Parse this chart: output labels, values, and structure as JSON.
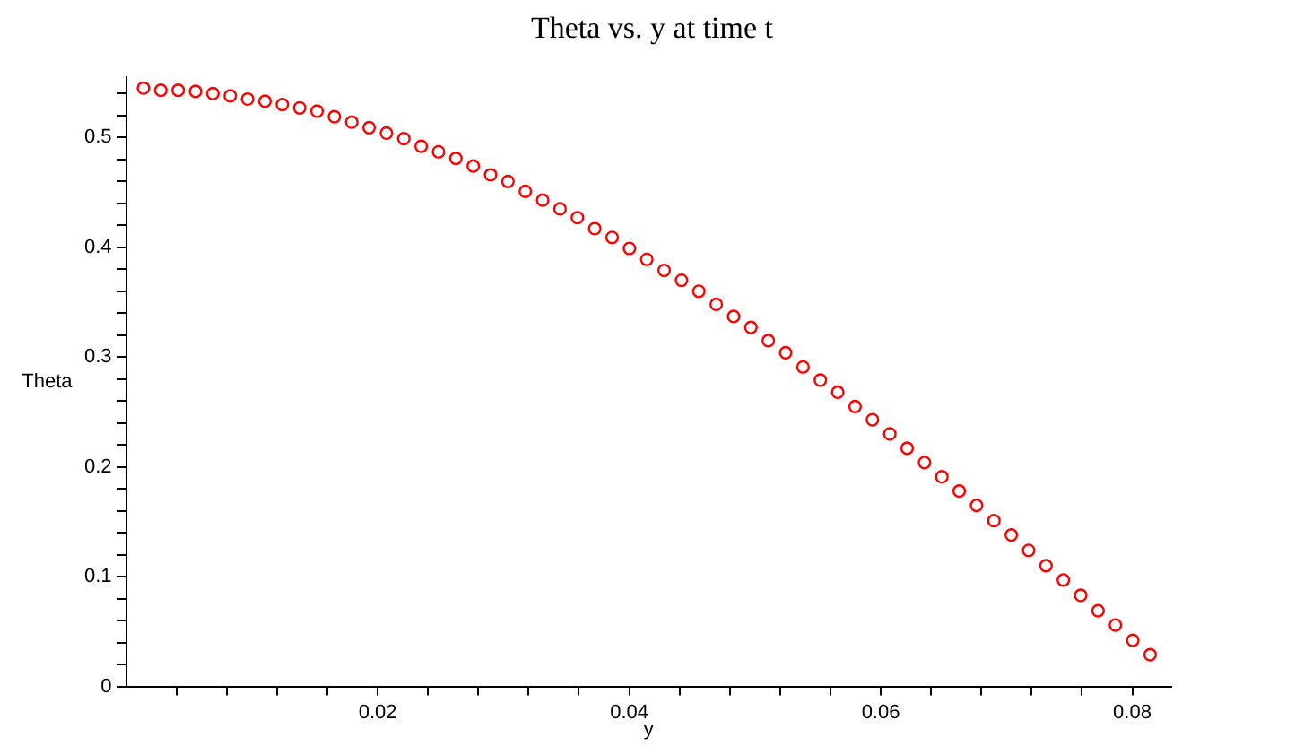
{
  "chart_data": {
    "type": "scatter",
    "title": "Theta vs. y at time t",
    "xlabel": "y",
    "ylabel": "Theta",
    "marker": "circle",
    "grid": false,
    "legend": false,
    "xlim": [
      0,
      0.0831
    ],
    "ylim": [
      0,
      0.555
    ],
    "xticks": [
      {
        "value": 0.004,
        "label": null
      },
      {
        "value": 0.008,
        "label": null
      },
      {
        "value": 0.012,
        "label": null
      },
      {
        "value": 0.016,
        "label": null
      },
      0.02,
      {
        "value": 0.024,
        "label": null
      },
      {
        "value": 0.028,
        "label": null
      },
      {
        "value": 0.032,
        "label": null
      },
      {
        "value": 0.036,
        "label": null
      },
      0.04,
      {
        "value": 0.044,
        "label": null
      },
      {
        "value": 0.048,
        "label": null
      },
      {
        "value": 0.052,
        "label": null
      },
      {
        "value": 0.056,
        "label": null
      },
      0.06,
      {
        "value": 0.064,
        "label": null
      },
      {
        "value": 0.068,
        "label": null
      },
      {
        "value": 0.072,
        "label": null
      },
      {
        "value": 0.076,
        "label": null
      },
      0.08
    ],
    "yticks": [
      0,
      {
        "value": 0.02,
        "label": null
      },
      {
        "value": 0.04,
        "label": null
      },
      {
        "value": 0.06,
        "label": null
      },
      {
        "value": 0.08,
        "label": null
      },
      0.1,
      {
        "value": 0.12,
        "label": null
      },
      {
        "value": 0.14,
        "label": null
      },
      {
        "value": 0.16,
        "label": null
      },
      {
        "value": 0.18,
        "label": null
      },
      0.2,
      {
        "value": 0.22,
        "label": null
      },
      {
        "value": 0.24,
        "label": null
      },
      {
        "value": 0.26,
        "label": null
      },
      {
        "value": 0.28,
        "label": null
      },
      0.3,
      {
        "value": 0.32,
        "label": null
      },
      {
        "value": 0.34,
        "label": null
      },
      {
        "value": 0.36,
        "label": null
      },
      {
        "value": 0.38,
        "label": null
      },
      0.4,
      {
        "value": 0.42,
        "label": null
      },
      {
        "value": 0.44,
        "label": null
      },
      {
        "value": 0.46,
        "label": null
      },
      {
        "value": 0.48,
        "label": null
      },
      0.5,
      {
        "value": 0.52,
        "label": null
      },
      {
        "value": 0.54,
        "label": null
      }
    ],
    "x": [
      0.00138,
      0.00276,
      0.00414,
      0.00552,
      0.0069,
      0.00828,
      0.00966,
      0.01104,
      0.01242,
      0.0138,
      0.01518,
      0.01656,
      0.01794,
      0.01932,
      0.0207,
      0.02208,
      0.02346,
      0.02484,
      0.02622,
      0.0276,
      0.02898,
      0.03036,
      0.03174,
      0.03312,
      0.0345,
      0.03588,
      0.03726,
      0.03864,
      0.04002,
      0.0414,
      0.04278,
      0.04416,
      0.04554,
      0.04692,
      0.0483,
      0.04968,
      0.05106,
      0.05244,
      0.05382,
      0.0552,
      0.05658,
      0.05796,
      0.05934,
      0.06072,
      0.0621,
      0.06348,
      0.06486,
      0.06624,
      0.06762,
      0.069,
      0.07038,
      0.07176,
      0.07314,
      0.07452,
      0.0759,
      0.07728,
      0.07866,
      0.08004,
      0.08142
    ],
    "series": [
      {
        "color": "#ff0000",
        "values": [
          0.545,
          0.543,
          0.543,
          0.542,
          0.54,
          0.538,
          0.535,
          0.533,
          0.53,
          0.527,
          0.524,
          0.519,
          0.514,
          0.509,
          0.504,
          0.499,
          0.492,
          0.487,
          0.481,
          0.474,
          0.466,
          0.46,
          0.451,
          0.443,
          0.435,
          0.427,
          0.417,
          0.409,
          0.399,
          0.389,
          0.379,
          0.37,
          0.36,
          0.348,
          0.337,
          0.327,
          0.315,
          0.304,
          0.291,
          0.279,
          0.268,
          0.255,
          0.243,
          0.23,
          0.217,
          0.204,
          0.191,
          0.178,
          0.165,
          0.151,
          0.138,
          0.124,
          0.11,
          0.097,
          0.083,
          0.069,
          0.056,
          0.042,
          0.029
        ]
      }
    ]
  }
}
